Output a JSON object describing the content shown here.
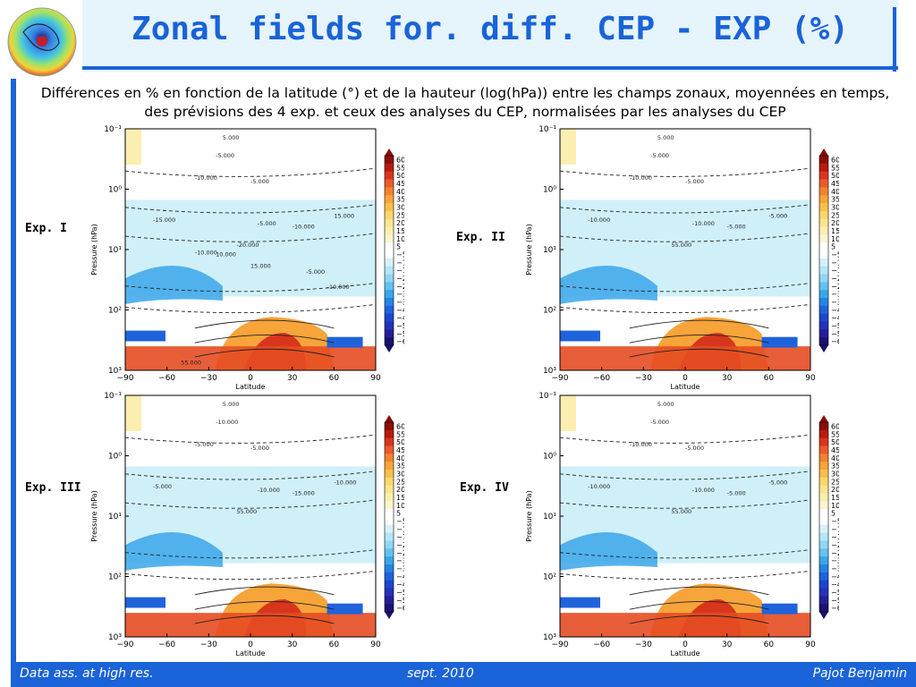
{
  "header": {
    "title": "Zonal fields for. diff. CEP - EXP (%)",
    "subtitle": "Différences en % en fonction de la latitude (°) et de la hauteur (log(hPa)) entre les champs zonaux, moyennées en temps, des prévisions des 4 exp. et ceux des analyses du CEP, normalisées par les analyses du CEP"
  },
  "footer": {
    "left": "Data ass. at high res.",
    "center": "sept. 2010",
    "right": "Pajot Benjamin"
  },
  "colors": {
    "accent": "#1a63d8",
    "title_band": "#e6f4fb"
  },
  "chart_data": [
    {
      "type": "heatmap",
      "panel_label": "Exp. I",
      "xlabel": "Latitude",
      "ylabel": "Pressure (hPa)",
      "x_ticks": [
        "−90",
        "−60",
        "−30",
        "0",
        "30",
        "60",
        "90"
      ],
      "y_ticks": [
        "10⁻¹",
        "10⁰",
        "10¹",
        "10²",
        "10³"
      ],
      "xlim": [
        -90,
        90
      ],
      "ylim": [
        1000,
        0.1
      ],
      "y_scale": "log",
      "colorbar_ticks": [
        "60",
        "55",
        "50",
        "45",
        "40",
        "35",
        "30",
        "25",
        "20",
        "15",
        "10",
        "5",
        "−5",
        "−10",
        "−15",
        "−20",
        "−25",
        "−30",
        "−35",
        "−40",
        "−45",
        "−50",
        "−55",
        "−60"
      ],
      "contour_labels": [
        "5.000",
        "-5.000",
        "-10.000",
        "-5.000",
        "15.000",
        "-15.000",
        "-5.000",
        "-10.000",
        "-20.000",
        "-10.000",
        "10.000",
        "15.000",
        "-5.000",
        "-10.000",
        "55.000"
      ]
    },
    {
      "type": "heatmap",
      "panel_label": "Exp. II",
      "xlabel": "Latitude",
      "ylabel": "Pressure (hPa)",
      "x_ticks": [
        "−90",
        "−60",
        "−30",
        "0",
        "30",
        "60",
        "90"
      ],
      "y_ticks": [
        "10⁻¹",
        "10⁰",
        "10¹",
        "10²",
        "10³"
      ],
      "xlim": [
        -90,
        90
      ],
      "ylim": [
        1000,
        0.1
      ],
      "y_scale": "log",
      "colorbar_ticks": [
        "60",
        "55",
        "50",
        "45",
        "40",
        "35",
        "30",
        "25",
        "20",
        "15",
        "10",
        "5",
        "−5",
        "−10",
        "−15",
        "−20",
        "−25",
        "−30",
        "−35",
        "−40",
        "−45",
        "−50",
        "−55",
        "−60"
      ],
      "contour_labels": [
        "5.000",
        "-5.000",
        "-10.000",
        "-5.000",
        "-5.000",
        "-10.000",
        "-10.000",
        "-5.000",
        "55.000"
      ]
    },
    {
      "type": "heatmap",
      "panel_label": "Exp. III",
      "xlabel": "Latitude",
      "ylabel": "Pressure (hPa)",
      "x_ticks": [
        "−90",
        "−60",
        "−30",
        "0",
        "30",
        "60",
        "90"
      ],
      "y_ticks": [
        "10⁻¹",
        "10⁰",
        "10¹",
        "10²",
        "10³"
      ],
      "xlim": [
        -90,
        90
      ],
      "ylim": [
        1000,
        0.1
      ],
      "y_scale": "log",
      "colorbar_ticks": [
        "60",
        "55",
        "50",
        "45",
        "40",
        "35",
        "30",
        "25",
        "20",
        "15",
        "10",
        "5",
        "−5",
        "−10",
        "−15",
        "−20",
        "−25",
        "−30",
        "−35",
        "−40",
        "−45",
        "−50",
        "−55",
        "−60"
      ],
      "contour_labels": [
        "5.000",
        "-10.000",
        "-5.000",
        "-5.000",
        "-10.000",
        "-5.000",
        "-10.000",
        "-15.000",
        "55.000"
      ]
    },
    {
      "type": "heatmap",
      "panel_label": "Exp. IV",
      "xlabel": "Latitude",
      "ylabel": "Pressure (hPa)",
      "x_ticks": [
        "−90",
        "−60",
        "−30",
        "0",
        "30",
        "60",
        "90"
      ],
      "y_ticks": [
        "10⁻¹",
        "10⁰",
        "10¹",
        "10²",
        "10³"
      ],
      "xlim": [
        -90,
        90
      ],
      "ylim": [
        1000,
        0.1
      ],
      "y_scale": "log",
      "colorbar_ticks": [
        "60",
        "55",
        "50",
        "45",
        "40",
        "35",
        "30",
        "25",
        "20",
        "15",
        "10",
        "5",
        "−5",
        "−10",
        "−15",
        "−20",
        "−25",
        "−30",
        "−35",
        "−40",
        "−45",
        "−50",
        "−55",
        "−60"
      ],
      "contour_labels": [
        "5.000",
        "-5.000",
        "-10.000",
        "-5.000",
        "-5.000",
        "-10.000",
        "-10.000",
        "-5.000",
        "55.000"
      ]
    }
  ]
}
